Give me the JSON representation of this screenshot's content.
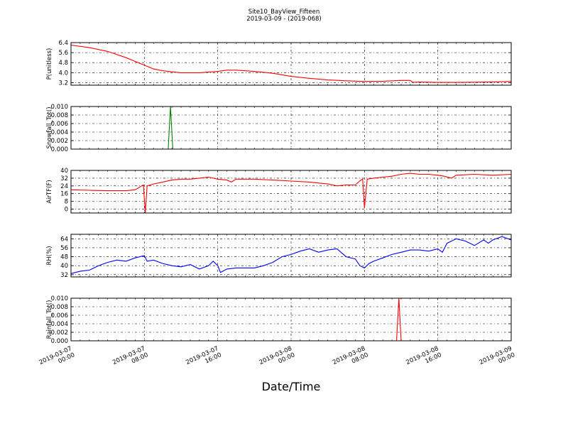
{
  "chart_data": {
    "type": "line",
    "title": "Site10_BayView_Fifteen",
    "subtitle": "2019-03-09 - (2019-068)",
    "xlabel": "Date/Time",
    "x_tick_labels": [
      [
        "2019-03-07",
        "00:00"
      ],
      [
        "2019-03-07",
        "08:00"
      ],
      [
        "2019-03-07",
        "16:00"
      ],
      [
        "2019-03-08",
        "00:00"
      ],
      [
        "2019-03-08",
        "08:00"
      ],
      [
        "2019-03-08",
        "16:00"
      ],
      [
        "2019-03-09",
        "00:00"
      ]
    ],
    "x_range_hours": [
      0,
      48
    ],
    "grid": true,
    "panels": [
      {
        "ylabel": "P(unitless)",
        "ylim": [
          3.0,
          6.4
        ],
        "yticks": [
          "6.4",
          "5.6",
          "4.8",
          "4.0",
          "3.2"
        ],
        "ytick_values": [
          6.4,
          5.6,
          4.8,
          4.0,
          3.2
        ],
        "color": "#ff0000",
        "x": [
          0,
          2,
          4,
          6,
          7,
          8,
          9,
          10,
          12,
          14,
          16,
          17,
          18,
          20,
          22,
          24,
          26,
          28,
          30,
          32,
          34,
          36,
          37,
          37.3,
          38,
          40,
          42,
          44,
          46,
          48
        ],
        "y": [
          6.2,
          6.0,
          5.7,
          5.2,
          4.9,
          4.6,
          4.3,
          4.15,
          4.0,
          4.0,
          4.1,
          4.2,
          4.2,
          4.1,
          3.95,
          3.7,
          3.55,
          3.42,
          3.35,
          3.3,
          3.32,
          3.38,
          3.38,
          3.22,
          3.25,
          3.22,
          3.22,
          3.24,
          3.26,
          3.3
        ]
      },
      {
        "ylabel": "Snowfall_Tot()",
        "ylim": [
          0.0,
          0.01
        ],
        "yticks": [
          "0.010",
          "0.008",
          "0.006",
          "0.004",
          "0.002",
          "0.000"
        ],
        "ytick_values": [
          0.01,
          0.008,
          0.006,
          0.004,
          0.002,
          0.0
        ],
        "color": "#008000",
        "x": [
          0,
          10.6,
          10.85,
          11.1,
          48
        ],
        "y": [
          0,
          0,
          0.01,
          0,
          0
        ]
      },
      {
        "ylabel": "AirTF(F)",
        "ylim": [
          -4,
          40
        ],
        "yticks": [
          "40",
          "32",
          "24",
          "16",
          "8",
          "0"
        ],
        "ytick_values": [
          40,
          32,
          24,
          16,
          8,
          0
        ],
        "color": "#ff0000",
        "x": [
          0,
          2,
          4,
          6,
          7,
          7.7,
          7.9,
          8.1,
          8.3,
          9,
          10,
          11,
          12,
          13,
          14,
          15,
          16,
          17,
          17.5,
          18,
          20,
          22,
          24,
          26,
          28,
          29,
          30,
          31,
          31.6,
          31.8,
          32.0,
          32.3,
          33,
          34,
          35,
          36,
          37,
          38,
          39,
          40,
          40.7,
          41.5,
          42,
          44,
          46,
          48
        ],
        "y": [
          20,
          19.5,
          19,
          19,
          20,
          24,
          25,
          -4,
          24,
          26,
          28,
          30,
          31,
          31,
          32,
          33,
          31,
          30,
          28,
          31,
          31,
          30,
          29,
          28,
          26,
          24,
          25,
          25,
          30,
          31,
          1,
          31,
          32,
          33,
          34,
          36,
          37,
          36,
          36,
          35,
          34,
          32,
          35,
          36,
          35,
          36
        ]
      },
      {
        "ylabel": "RH(%)",
        "ylim": [
          30,
          68
        ],
        "yticks": [
          "64",
          "56",
          "48",
          "40",
          "32"
        ],
        "ytick_values": [
          64,
          56,
          48,
          40,
          32
        ],
        "color": "#0000ff",
        "x": [
          0,
          1,
          2,
          3,
          4,
          5,
          6,
          7,
          8,
          8.3,
          9,
          10,
          11,
          12,
          13,
          14,
          15,
          15.5,
          16,
          16.3,
          17,
          18,
          19,
          20,
          21,
          22,
          23,
          24,
          25,
          26,
          27,
          28,
          29,
          30,
          31,
          31.5,
          32,
          32.5,
          33,
          34,
          35,
          36,
          37,
          38,
          39,
          40,
          40.5,
          41,
          42,
          43,
          44,
          45,
          45.5,
          46,
          47,
          48
        ],
        "y": [
          33,
          35,
          36,
          40,
          43,
          45,
          44,
          47,
          49,
          44,
          45,
          42,
          40,
          39,
          41,
          37,
          40,
          44,
          40,
          34,
          37,
          38,
          38,
          38,
          40,
          43,
          48,
          50,
          53,
          55,
          52,
          54,
          55,
          48,
          46,
          40,
          38,
          42,
          44,
          47,
          50,
          52,
          54,
          54,
          53,
          55,
          52,
          60,
          64,
          62,
          58,
          63,
          60,
          63,
          66,
          63
        ]
      },
      {
        "ylabel": "Rainfall_Tot()",
        "ylim": [
          0.0,
          0.01
        ],
        "yticks": [
          "0.010",
          "0.008",
          "0.006",
          "0.004",
          "0.002",
          "0.000"
        ],
        "ytick_values": [
          0.01,
          0.008,
          0.006,
          0.004,
          0.002,
          0.0
        ],
        "color": "#ff0000",
        "x": [
          0,
          35.5,
          35.75,
          36.0,
          48
        ],
        "y": [
          0,
          0,
          0.01,
          0,
          0
        ]
      }
    ]
  }
}
